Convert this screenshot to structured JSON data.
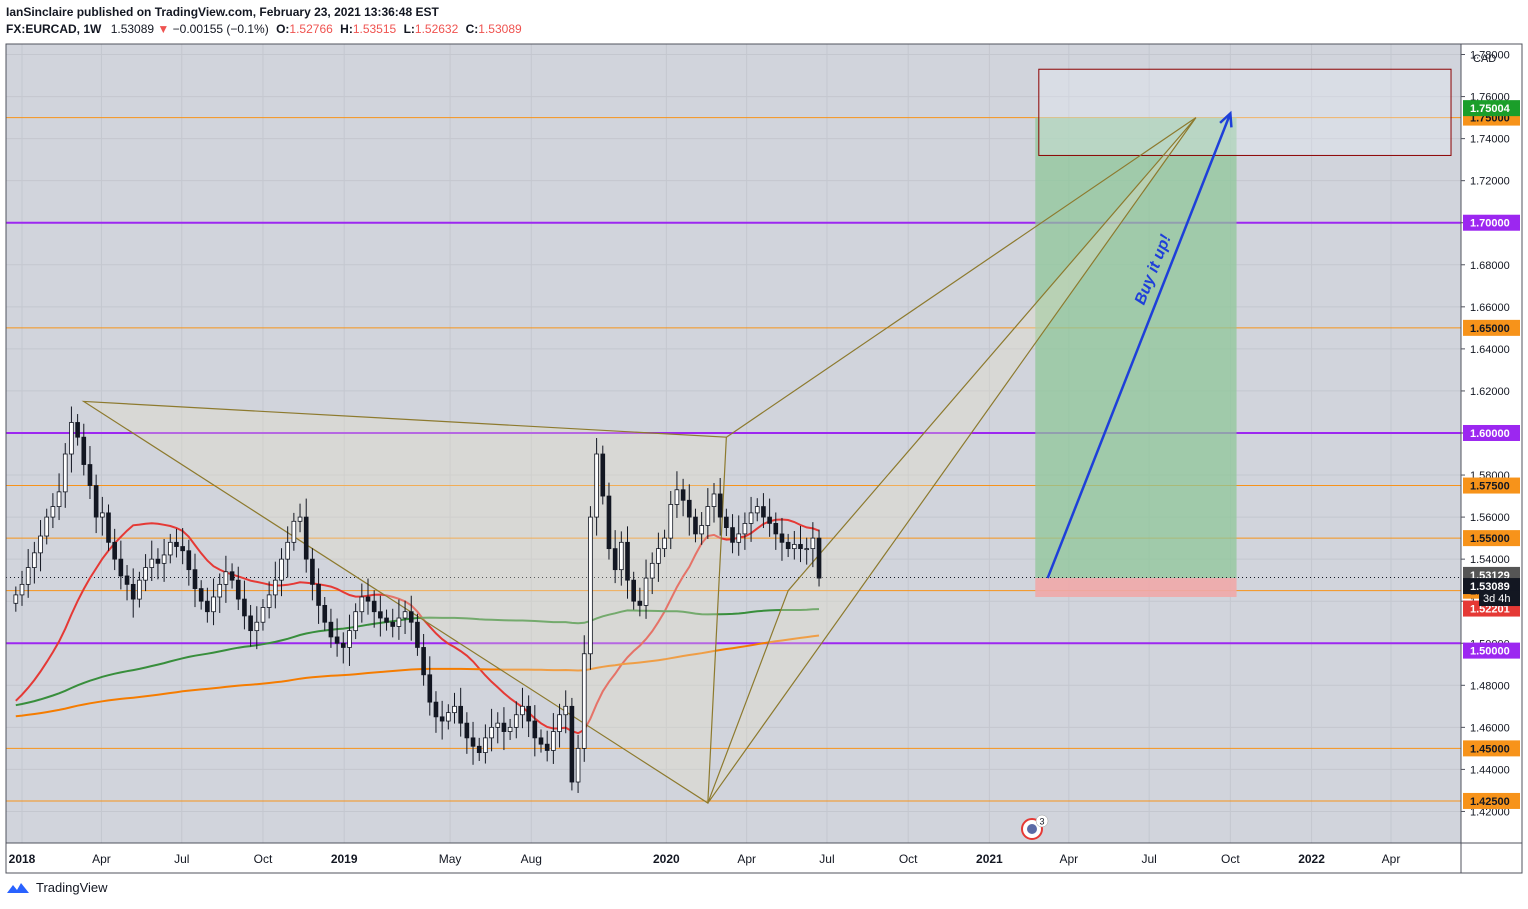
{
  "header": {
    "publisher_line": "IanSinclaire published on TradingView.com, February 23, 2021 13:36:48 EST",
    "symbol": "FX:EURCAD, 1W",
    "last": "1.53089",
    "change_arrow": "▼",
    "change": "−0.00155 (−0.1%)",
    "o_label": "O:",
    "o": "1.52766",
    "h_label": "H:",
    "h": "1.53515",
    "l_label": "L:",
    "l": "1.52632",
    "c_label": "C:",
    "c": "1.53089"
  },
  "footer": {
    "brand": "TradingView"
  },
  "colors": {
    "plot_bg": "#d1d4dc",
    "orange_line": "#f7931a",
    "purple_line": "#9c27f0",
    "ma_red": "#e53935",
    "ma_green": "#388e3c",
    "ma_orange": "#f57c00",
    "pattern": "#8d7a2e",
    "arrow": "#1e3fd9",
    "target_fill": "#8fc79a",
    "stop_fill": "#f0a8a8",
    "zone_border": "#8b0000"
  },
  "chart_data": {
    "type": "candlestick",
    "currency": "CAD",
    "ylim": [
      1.405,
      1.785
    ],
    "y_ticks": [
      "1.78000",
      "1.76000",
      "1.74000",
      "1.72000",
      "1.70000",
      "1.68000",
      "1.66000",
      "1.64000",
      "1.62000",
      "1.60000",
      "1.58000",
      "1.56000",
      "1.54000",
      "1.52000",
      "1.50000",
      "1.48000",
      "1.46000",
      "1.44000",
      "1.42000"
    ],
    "x_ticks": [
      {
        "date": "2018-01-01",
        "label": "2018"
      },
      {
        "date": "2018-04-01",
        "label": "Apr"
      },
      {
        "date": "2018-07-01",
        "label": "Jul"
      },
      {
        "date": "2018-10-01",
        "label": "Oct"
      },
      {
        "date": "2019-01-01",
        "label": "2019"
      },
      {
        "date": "2019-05-01",
        "label": "May"
      },
      {
        "date": "2019-08-01",
        "label": "Aug"
      },
      {
        "date": "2020-01-01",
        "label": "2020"
      },
      {
        "date": "2020-04-01",
        "label": "Apr"
      },
      {
        "date": "2020-07-01",
        "label": "Jul"
      },
      {
        "date": "2020-10-01",
        "label": "Oct"
      },
      {
        "date": "2021-01-01",
        "label": "2021"
      },
      {
        "date": "2021-04-01",
        "label": "Apr"
      },
      {
        "date": "2021-07-01",
        "label": "Jul"
      },
      {
        "date": "2021-10-01",
        "label": "Oct"
      },
      {
        "date": "2022-01-01",
        "label": "2022"
      },
      {
        "date": "2022-04-01",
        "label": "Apr"
      }
    ],
    "horizontal_levels": [
      {
        "value": 1.75,
        "label": "1.75000",
        "style": "orange"
      },
      {
        "value": 1.7,
        "label": "1.70000",
        "style": "purple"
      },
      {
        "value": 1.65,
        "label": "1.65000",
        "style": "orange"
      },
      {
        "value": 1.6,
        "label": "1.60000",
        "style": "purple"
      },
      {
        "value": 1.575,
        "label": "1.57500",
        "style": "orange"
      },
      {
        "value": 1.55,
        "label": "1.55000",
        "style": "orange"
      },
      {
        "value": 1.525,
        "label": "1.52500",
        "style": "orange"
      },
      {
        "value": 1.5,
        "label": "1.50000",
        "style": "purple"
      },
      {
        "value": 1.45,
        "label": "1.45000",
        "style": "orange"
      },
      {
        "value": 1.425,
        "label": "1.42500",
        "style": "orange"
      }
    ],
    "price_badges": [
      {
        "value": 1.75004,
        "label": "1.75004",
        "color": "#1b9e2a"
      },
      {
        "value": 1.53129,
        "label": "1.53129",
        "color": "#555555"
      },
      {
        "value": 1.53089,
        "label": "1.53089",
        "color": "#131722"
      },
      {
        "value": 1.52201,
        "label": "1.52201",
        "color": "#e53935"
      }
    ],
    "countdown": "3d 4h",
    "pattern_points": [
      {
        "date": "2018-03-12",
        "value": 1.615
      },
      {
        "date": "2020-03-09",
        "value": 1.598
      },
      {
        "date": "2020-02-17",
        "value": 1.424
      },
      {
        "date": "2020-05-18",
        "value": 1.525
      },
      {
        "date": "2021-08-23",
        "value": 1.75
      }
    ],
    "annotation": "Buy it up!",
    "arrow": {
      "from": {
        "date": "2021-03-08",
        "value": 1.531
      },
      "to": {
        "date": "2021-10-01",
        "value": 1.752
      }
    },
    "position": {
      "start": "2021-02-22",
      "end": "2021-10-08",
      "entry": 1.531,
      "target": 1.75,
      "stop": 1.522
    },
    "target_zone": {
      "start": "2021-02-26",
      "end": "2022-06-08",
      "top": 1.773,
      "bottom": 1.732
    },
    "events_badge": "3",
    "closes": [
      1.523,
      1.528,
      1.536,
      1.543,
      1.551,
      1.56,
      1.565,
      1.572,
      1.59,
      1.605,
      1.598,
      1.585,
      1.575,
      1.56,
      1.562,
      1.548,
      1.54,
      1.532,
      1.528,
      1.521,
      1.53,
      1.536,
      1.54,
      1.538,
      1.542,
      1.548,
      1.546,
      1.544,
      1.535,
      1.526,
      1.52,
      1.515,
      1.522,
      1.528,
      1.534,
      1.53,
      1.521,
      1.513,
      1.506,
      1.51,
      1.517,
      1.523,
      1.53,
      1.54,
      1.548,
      1.558,
      1.56,
      1.54,
      1.528,
      1.518,
      1.51,
      1.503,
      1.5,
      1.498,
      1.506,
      1.515,
      1.522,
      1.52,
      1.515,
      1.512,
      1.51,
      1.508,
      1.512,
      1.515,
      1.51,
      1.498,
      1.485,
      1.472,
      1.465,
      1.463,
      1.467,
      1.47,
      1.462,
      1.455,
      1.451,
      1.448,
      1.455,
      1.46,
      1.462,
      1.458,
      1.46,
      1.466,
      1.47,
      1.463,
      1.455,
      1.452,
      1.449,
      1.458,
      1.466,
      1.47,
      1.434,
      1.45,
      1.495,
      1.56,
      1.59,
      1.57,
      1.545,
      1.535,
      1.548,
      1.53,
      1.52,
      1.518,
      1.531,
      1.538,
      1.545,
      1.55,
      1.566,
      1.573,
      1.568,
      1.56,
      1.552,
      1.556,
      1.565,
      1.571,
      1.56,
      1.555,
      1.548,
      1.552,
      1.557,
      1.562,
      1.565,
      1.56,
      1.557,
      1.552,
      1.548,
      1.545,
      1.547,
      1.545,
      1.545,
      1.55,
      1.531
    ]
  }
}
